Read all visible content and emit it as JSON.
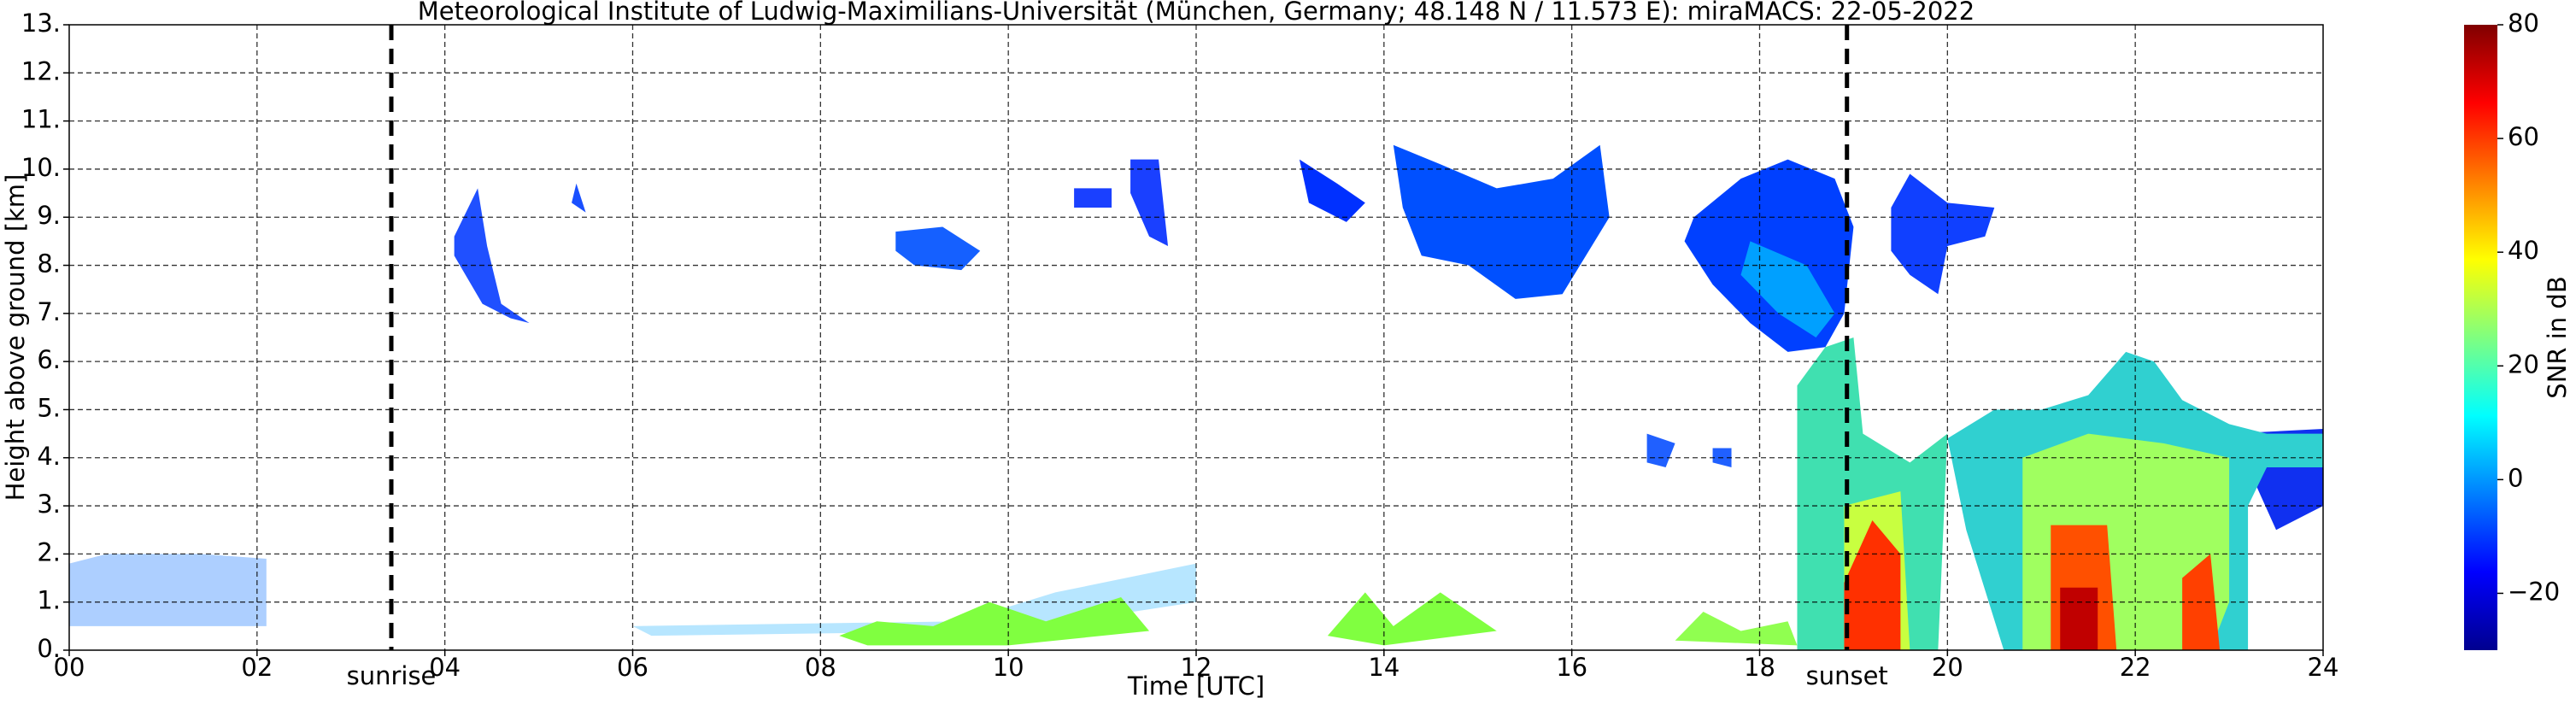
{
  "chart_data": {
    "type": "heatmap",
    "title": "Meteorological Institute of Ludwig-Maximilians-Universität (München, Germany; 48.148 N / 11.573 E):    miraMACS: 22-05-2022",
    "x_label": "Time [UTC]",
    "y_label": "Height above ground [km]",
    "xlim": [
      0,
      24
    ],
    "ylim": [
      0,
      13
    ],
    "xticks": [
      {
        "value": 0,
        "label": "00"
      },
      {
        "value": 2,
        "label": "02"
      },
      {
        "value": 4,
        "label": "04"
      },
      {
        "value": 6,
        "label": "06"
      },
      {
        "value": 8,
        "label": "08"
      },
      {
        "value": 10,
        "label": "10"
      },
      {
        "value": 12,
        "label": "12"
      },
      {
        "value": 14,
        "label": "14"
      },
      {
        "value": 16,
        "label": "16"
      },
      {
        "value": 18,
        "label": "18"
      },
      {
        "value": 20,
        "label": "20"
      },
      {
        "value": 22,
        "label": "22"
      },
      {
        "value": 24,
        "label": "24"
      }
    ],
    "yticks": [
      {
        "value": 0,
        "label": "0."
      },
      {
        "value": 1,
        "label": "1."
      },
      {
        "value": 2,
        "label": "2."
      },
      {
        "value": 3,
        "label": "3."
      },
      {
        "value": 4,
        "label": "4."
      },
      {
        "value": 5,
        "label": "5."
      },
      {
        "value": 6,
        "label": "6."
      },
      {
        "value": 7,
        "label": "7."
      },
      {
        "value": 8,
        "label": "8."
      },
      {
        "value": 9,
        "label": "9."
      },
      {
        "value": 10,
        "label": "10."
      },
      {
        "value": 11,
        "label": "11."
      },
      {
        "value": 12,
        "label": "12."
      },
      {
        "value": 13,
        "label": "13."
      }
    ],
    "grid": true,
    "colorbar": {
      "label": "SNR in dB",
      "colormap": "jet",
      "lim": [
        -30,
        80
      ],
      "ticks": [
        {
          "value": -20,
          "label": "−20"
        },
        0,
        20,
        40,
        60,
        80
      ]
    },
    "annotations": [
      {
        "text": "sunrise",
        "x": 3.43
      },
      {
        "text": "sunset",
        "x": 18.93
      }
    ]
  }
}
